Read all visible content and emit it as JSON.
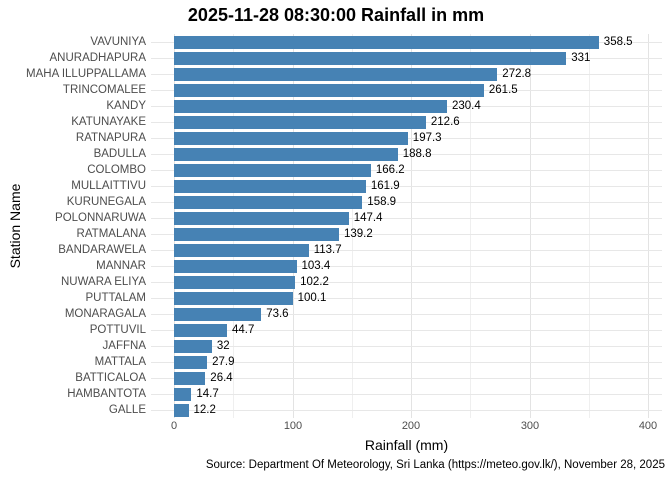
{
  "title": "2025-11-28 08:30:00 Rainfall in mm",
  "caption": "Source: Department Of Meteorology, Sri Lanka (https://meteo.gov.lk/), November 28, 2025",
  "colors": {
    "bar": "#4682B4",
    "grid_major": "#E3E3E3",
    "grid_minor": "#EFEFEF",
    "row_grid": "#E7E7E7",
    "axis_text": "#4d4d4d",
    "value_text": "#000000"
  },
  "chart_data": {
    "type": "bar",
    "orientation": "horizontal",
    "title": "2025-11-28 08:30:00 Rainfall in mm",
    "xlabel": "Rainfall (mm)",
    "ylabel": "Station Name",
    "xlim": [
      0,
      410
    ],
    "x_ticks": [
      0,
      100,
      200,
      300,
      400
    ],
    "x_minor_step": 50,
    "grid": true,
    "legend": false,
    "categories": [
      "VAVUNIYA",
      "ANURADHAPURA",
      "MAHA ILLUPPALLAMA",
      "TRINCOMALEE",
      "KANDY",
      "KATUNAYAKE",
      "RATNAPURA",
      "BADULLA",
      "COLOMBO",
      "MULLAITTIVU",
      "KURUNEGALA",
      "POLONNARUWA",
      "RATMALANA",
      "BANDARAWELA",
      "MANNAR",
      "NUWARA ELIYA",
      "PUTTALAM",
      "MONARAGALA",
      "POTTUVIL",
      "JAFFNA",
      "MATTALA",
      "BATTICALOA",
      "HAMBANTOTA",
      "GALLE"
    ],
    "values": [
      358.5,
      331,
      272.8,
      261.5,
      230.4,
      212.6,
      197.3,
      188.8,
      166.2,
      161.9,
      158.9,
      147.4,
      139.2,
      113.7,
      103.4,
      102.2,
      100.1,
      73.6,
      44.7,
      32,
      27.9,
      26.4,
      14.7,
      12.2
    ]
  }
}
